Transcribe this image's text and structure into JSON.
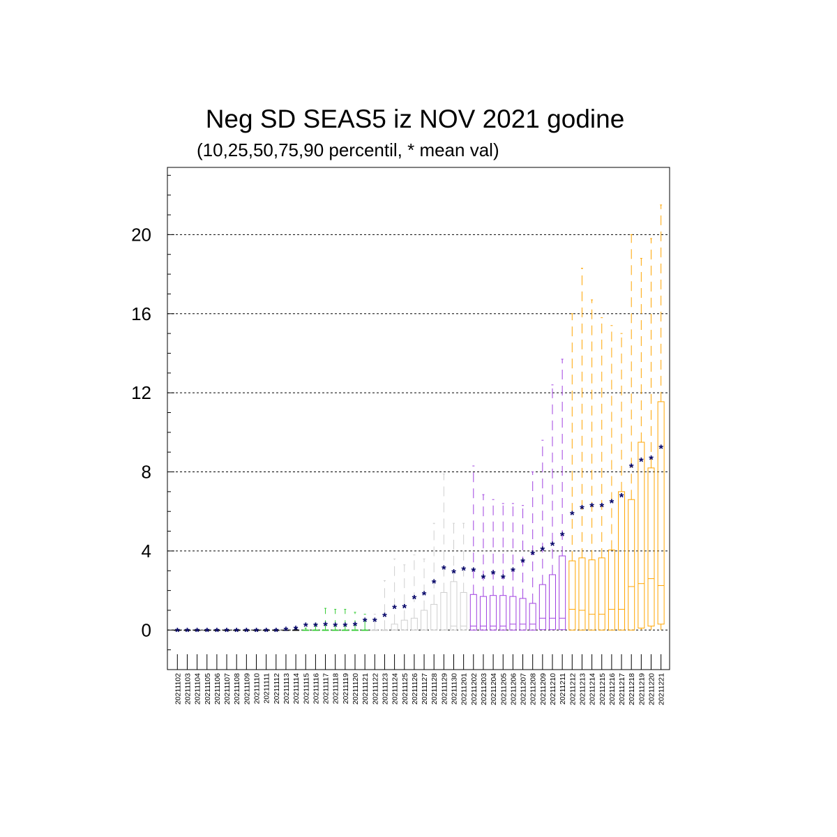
{
  "chart_data": {
    "type": "box",
    "title": "Neg SD SEAS5 iz NOV 2021 godine",
    "subtitle": "(10,25,50,75,90 percentil, * mean val)",
    "xlabel": "",
    "ylabel": "",
    "ylim": [
      -2,
      23.4
    ],
    "yticks": [
      0,
      4,
      8,
      12,
      16,
      20
    ],
    "grid": "dashed horizontal at major ticks",
    "colors": {
      "nov_early": "#000000",
      "nov_mid": "#33cc33",
      "nov_late": "#cfcfcf",
      "dec_early": "#a040e0",
      "dec_late": "#ffa500",
      "mean_marker": "#000066"
    },
    "categories": [
      "20211102",
      "20211103",
      "20211104",
      "20211105",
      "20211106",
      "20211107",
      "20211108",
      "20211109",
      "20211110",
      "20211111",
      "20211112",
      "20211113",
      "20211114",
      "20211115",
      "20211116",
      "20211117",
      "20211118",
      "20211119",
      "20211120",
      "20211121",
      "20211122",
      "20211123",
      "20211124",
      "20211125",
      "20211126",
      "20211127",
      "20211128",
      "20211129",
      "20211130",
      "20211201",
      "20211202",
      "20211203",
      "20211204",
      "20211205",
      "20211206",
      "20211207",
      "20211208",
      "20211209",
      "20211210",
      "20211211",
      "20211212",
      "20211213",
      "20211214",
      "20211215",
      "20211216",
      "20211217",
      "20211218",
      "20211219",
      "20211220",
      "20211221"
    ],
    "box_color_groups": [
      "nov_early",
      "nov_early",
      "nov_early",
      "nov_early",
      "nov_early",
      "nov_early",
      "nov_early",
      "nov_early",
      "nov_early",
      "nov_early",
      "nov_early",
      "nov_early",
      "nov_early",
      "nov_mid",
      "nov_mid",
      "nov_mid",
      "nov_mid",
      "nov_mid",
      "nov_mid",
      "nov_mid",
      "nov_late",
      "nov_late",
      "nov_late",
      "nov_late",
      "nov_late",
      "nov_late",
      "nov_late",
      "nov_late",
      "nov_late",
      "nov_late",
      "dec_early",
      "dec_early",
      "dec_early",
      "dec_early",
      "dec_early",
      "dec_early",
      "dec_early",
      "dec_early",
      "dec_early",
      "dec_early",
      "dec_late",
      "dec_late",
      "dec_late",
      "dec_late",
      "dec_late",
      "dec_late",
      "dec_late",
      "dec_late",
      "dec_late",
      "dec_late"
    ],
    "p10": [
      0,
      0,
      0,
      0,
      0,
      0,
      0,
      0,
      0,
      0,
      0,
      0,
      0,
      0,
      0,
      0,
      0,
      0,
      0,
      0,
      0,
      0,
      0,
      0,
      0,
      0,
      0,
      0,
      0,
      0,
      0,
      0,
      0,
      0,
      0,
      0,
      0,
      0,
      0,
      0,
      0,
      0,
      0,
      0,
      0,
      0,
      0,
      0,
      0,
      0
    ],
    "p25": [
      0,
      0,
      0,
      0,
      0,
      0,
      0,
      0,
      0,
      0,
      0,
      0,
      0,
      0,
      0,
      0,
      0,
      0,
      0,
      0,
      0,
      0,
      0,
      0,
      0,
      0,
      0,
      0,
      0,
      0,
      0,
      0,
      0,
      0,
      0,
      0,
      0,
      0.02,
      0.02,
      0.02,
      0,
      0,
      0,
      0,
      0,
      0,
      0,
      0.1,
      0.2,
      0.3
    ],
    "p50": [
      0,
      0,
      0,
      0,
      0,
      0,
      0,
      0,
      0,
      0,
      0,
      0,
      0,
      0,
      0,
      0,
      0,
      0,
      0,
      0,
      0,
      0,
      0,
      0,
      0,
      0,
      0,
      0,
      0.2,
      0.2,
      0.2,
      0.2,
      0.2,
      0.2,
      0.3,
      0.3,
      0.3,
      0.6,
      0.6,
      0.6,
      1.05,
      1.0,
      0.8,
      0.8,
      1.05,
      1.05,
      2.2,
      2.35,
      2.6,
      2.25
    ],
    "p75": [
      0,
      0,
      0,
      0,
      0,
      0,
      0,
      0,
      0,
      0,
      0,
      0,
      0,
      0,
      0,
      0,
      0,
      0,
      0,
      0,
      0,
      0,
      0.3,
      0.5,
      0.6,
      1.0,
      1.3,
      1.9,
      2.45,
      1.9,
      1.8,
      1.7,
      1.75,
      1.75,
      1.7,
      1.6,
      1.35,
      2.3,
      2.8,
      3.75,
      3.5,
      3.65,
      3.55,
      3.65,
      4.05,
      7.0,
      6.6,
      9.5,
      8.2,
      11.55
    ],
    "p90": [
      0,
      0,
      0,
      0,
      0,
      0,
      0,
      0,
      0,
      0,
      0,
      0,
      0.1,
      0.1,
      0.3,
      1.1,
      1.05,
      1.05,
      0.9,
      0.8,
      0.8,
      2.5,
      3.6,
      3.3,
      3.8,
      3.6,
      5.4,
      7.9,
      5.4,
      5.4,
      8.3,
      6.85,
      6.6,
      6.4,
      6.4,
      6.3,
      8.0,
      9.6,
      12.4,
      13.7,
      16.0,
      18.3,
      16.7,
      15.8,
      15.4,
      15.0,
      20.0,
      18.8,
      19.8,
      21.5
    ],
    "mean": [
      0,
      0,
      0,
      0,
      0,
      0,
      0,
      0,
      0,
      0,
      0,
      0.05,
      0.1,
      0.25,
      0.25,
      0.3,
      0.25,
      0.25,
      0.3,
      0.5,
      0.5,
      0.75,
      1.15,
      1.2,
      1.65,
      1.85,
      2.45,
      3.15,
      2.95,
      3.1,
      3.05,
      2.7,
      2.9,
      2.7,
      3.05,
      3.5,
      3.9,
      4.1,
      4.35,
      4.85,
      5.9,
      6.2,
      6.3,
      6.3,
      6.5,
      6.8,
      8.3,
      8.6,
      8.7,
      9.25
    ]
  }
}
